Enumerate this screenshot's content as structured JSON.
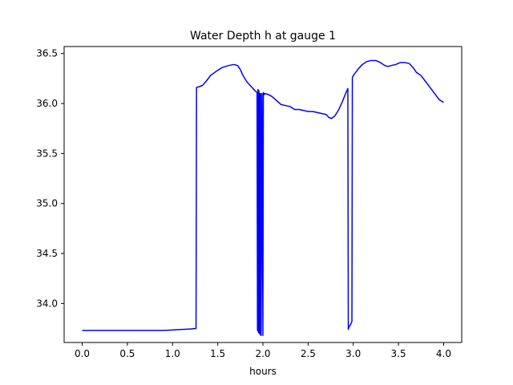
{
  "chart_data": {
    "type": "line",
    "title": "Water Depth h at gauge 1",
    "xlabel": "hours",
    "ylabel": "",
    "xlim": [
      -0.2,
      4.2
    ],
    "ylim": [
      33.61,
      36.57
    ],
    "xticks": [
      "0.0",
      "0.5",
      "1.0",
      "1.5",
      "2.0",
      "2.5",
      "3.0",
      "3.5",
      "4.0"
    ],
    "yticks": [
      "34.0",
      "34.5",
      "35.0",
      "35.5",
      "36.0",
      "36.5"
    ],
    "grid": false,
    "legend": "none",
    "series_color": "#0000ff",
    "series": [
      {
        "x": [
          0.0,
          0.5,
          0.9,
          1.1,
          1.2,
          1.26,
          1.265,
          1.3,
          1.33,
          1.37,
          1.42,
          1.48,
          1.55,
          1.62,
          1.68,
          1.72,
          1.75,
          1.78,
          1.82,
          1.87,
          1.91,
          1.935,
          1.94,
          1.945,
          1.95,
          1.955,
          1.96,
          1.965,
          1.97,
          1.975,
          1.98,
          1.99,
          2.0,
          2.005,
          2.01,
          2.015,
          2.02,
          2.06,
          2.1,
          2.15,
          2.2,
          2.3,
          2.35,
          2.4,
          2.45,
          2.5,
          2.55,
          2.6,
          2.65,
          2.7,
          2.73,
          2.76,
          2.8,
          2.84,
          2.88,
          2.92,
          2.94,
          2.945,
          2.95,
          2.97,
          2.985,
          2.99,
          3.0,
          3.05,
          3.1,
          3.15,
          3.2,
          3.25,
          3.3,
          3.35,
          3.38,
          3.42,
          3.47,
          3.52,
          3.57,
          3.62,
          3.67,
          3.7,
          3.75,
          3.8,
          3.85,
          3.9,
          3.95,
          4.0
        ],
        "y": [
          33.73,
          33.73,
          33.73,
          33.74,
          33.745,
          33.75,
          36.16,
          36.17,
          36.18,
          36.22,
          36.28,
          36.32,
          36.36,
          36.38,
          36.39,
          36.38,
          36.34,
          36.28,
          36.22,
          36.17,
          36.13,
          36.11,
          33.73,
          36.14,
          33.71,
          36.13,
          33.7,
          36.1,
          33.69,
          36.1,
          33.68,
          36.1,
          33.68,
          36.11,
          36.1,
          36.09,
          36.1,
          36.09,
          36.07,
          36.03,
          35.99,
          35.97,
          35.94,
          35.94,
          35.93,
          35.92,
          35.92,
          35.91,
          35.9,
          35.89,
          35.86,
          35.85,
          35.88,
          35.94,
          36.02,
          36.11,
          36.15,
          33.74,
          33.76,
          33.79,
          33.82,
          36.26,
          36.28,
          36.34,
          36.39,
          36.42,
          36.43,
          36.43,
          36.41,
          36.38,
          36.37,
          36.38,
          36.39,
          36.41,
          36.41,
          36.4,
          36.35,
          36.31,
          36.28,
          36.22,
          36.16,
          36.1,
          36.04,
          36.01
        ]
      }
    ]
  }
}
